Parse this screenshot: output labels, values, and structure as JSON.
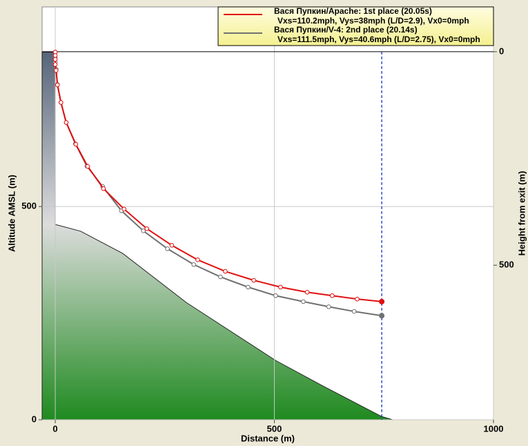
{
  "chart_data": {
    "type": "line",
    "xlabel": "Distance (m)",
    "ylabel": "Altitude AMSL  (m)",
    "y2label": "Height from exit (m)",
    "xlim": [
      -30,
      1000
    ],
    "xticks": [
      0,
      500,
      1000
    ],
    "ylim": [
      0,
      968
    ],
    "yticks": [
      0,
      500
    ],
    "y2lim": [
      862,
      -105
    ],
    "y2ticks": [
      0,
      500
    ],
    "grid": true,
    "legend": "upper right",
    "terrain": {
      "x": [
        -30,
        0,
        0,
        58,
        154,
        299,
        503,
        613,
        744,
        770,
        -30
      ],
      "y": [
        862,
        862,
        458,
        442,
        390,
        275,
        139,
        78,
        8,
        0,
        0
      ]
    },
    "landing_distance": 745,
    "series": [
      {
        "name": "Вася Пупкин/Apache: 1st place (20.05s)",
        "detail": "Vxs=110.2mph, Vys=38mph (L/D=2.9), Vx0=0mph",
        "color": "#e01010",
        "x": [
          0,
          0,
          0,
          0,
          2,
          5,
          13,
          25,
          47,
          74,
          110,
          157,
          209,
          266,
          325,
          388,
          453,
          514,
          575,
          632,
          689,
          745
        ],
        "y": [
          862,
          854,
          845,
          833,
          819,
          785,
          744,
          697,
          646,
          594,
          542,
          494,
          448,
          409,
          375,
          348,
          327,
          311,
          299,
          291,
          283,
          277
        ]
      },
      {
        "name": "Вася Пупкин/V-4: 2nd place (20.14s)",
        "detail": "Vxs=111.5mph, Vys=40.6mph (L/D=2.75), Vx0=0mph",
        "color": "#707070",
        "x": [
          0,
          0,
          0,
          2,
          5,
          13,
          25,
          46,
          72,
          108,
          151,
          201,
          256,
          316,
          377,
          440,
          503,
          566,
          624,
          682,
          745
        ],
        "y": [
          862,
          849,
          838,
          822,
          786,
          744,
          697,
          647,
          595,
          547,
          490,
          443,
          401,
          364,
          335,
          311,
          291,
          277,
          265,
          254,
          244
        ]
      }
    ]
  }
}
